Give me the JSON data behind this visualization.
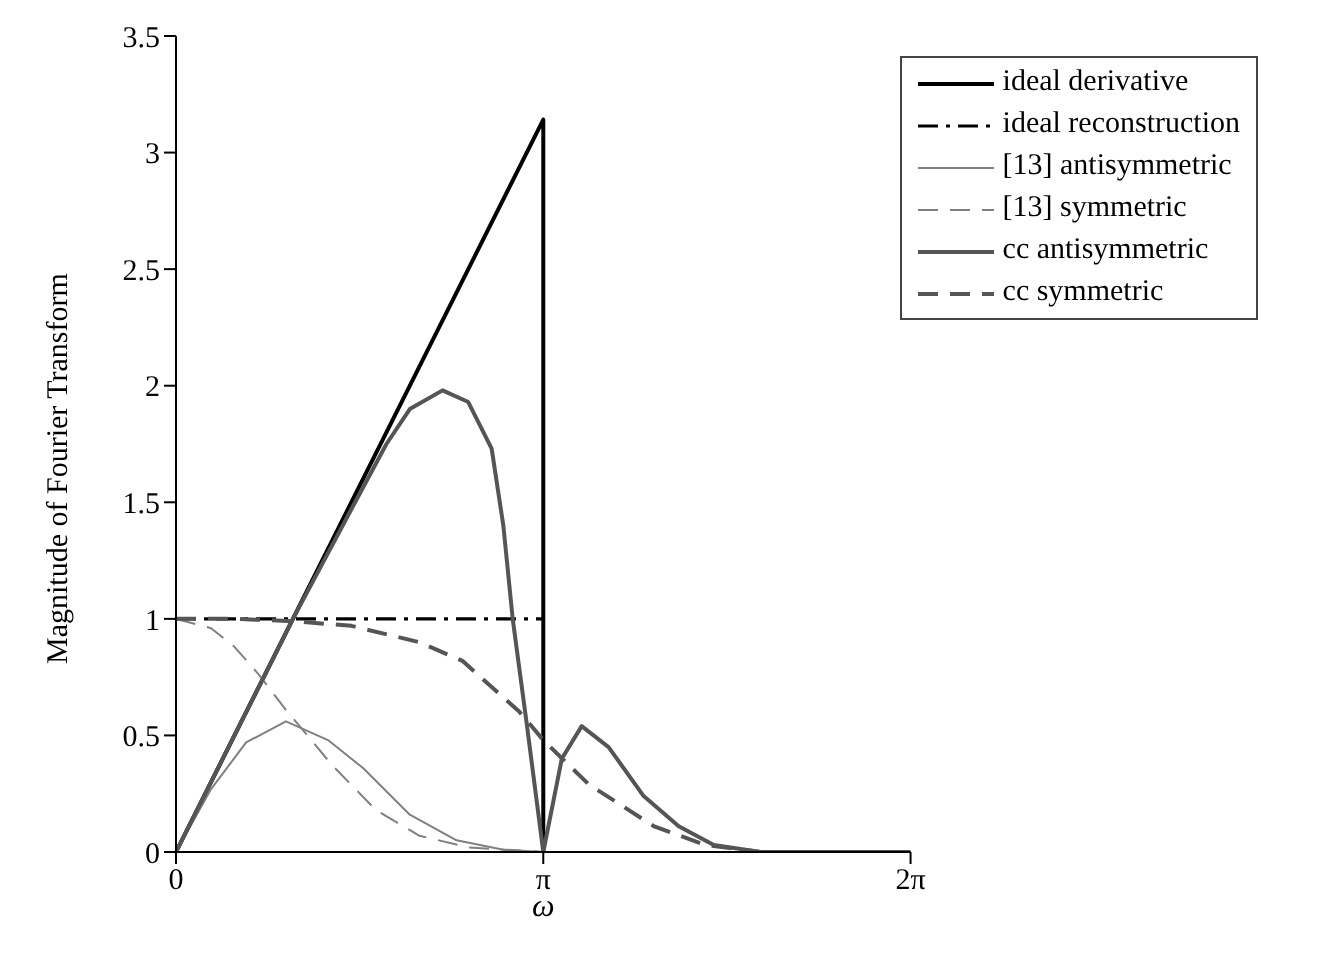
{
  "chart_data": {
    "type": "line",
    "xlabel": "ω",
    "ylabel": "Magnitude of Fourier Transform",
    "xlim": [
      0,
      6.2832
    ],
    "xticks": [
      {
        "value": 0,
        "label": "0"
      },
      {
        "value": 3.1416,
        "label": "π"
      },
      {
        "value": 6.2832,
        "label": "2π"
      }
    ],
    "ylim": [
      0,
      3.5
    ],
    "yticks": [
      0,
      0.5,
      1,
      1.5,
      2,
      2.5,
      3,
      3.5
    ],
    "grid": false,
    "legend": "top right",
    "marker": "none",
    "series": [
      {
        "name": "ideal derivative",
        "color": "#000000",
        "line_style": "solid",
        "x": [
          0,
          3.1416,
          3.1416
        ],
        "values": [
          0,
          3.1416,
          0
        ]
      },
      {
        "name": "ideal reconstruction",
        "color": "#000000",
        "line_style": "dashdot",
        "x": [
          0,
          3.1416
        ],
        "values": [
          1,
          1
        ]
      },
      {
        "name": "[13] antisymmetric",
        "color": "#808080",
        "line_style": "solid",
        "x": [
          0,
          0.3,
          0.6,
          0.94,
          1.3,
          1.6,
          2.0,
          2.4,
          2.8,
          3.1416
        ],
        "values": [
          0,
          0.27,
          0.47,
          0.56,
          0.48,
          0.36,
          0.16,
          0.05,
          0.01,
          0
        ]
      },
      {
        "name": "[13] symmetric",
        "color": "#808080",
        "line_style": "dashed",
        "x": [
          0,
          0.3,
          0.5,
          0.71,
          0.94,
          1.34,
          1.71,
          2.08,
          2.5,
          3.1416
        ],
        "values": [
          1,
          0.96,
          0.88,
          0.76,
          0.61,
          0.37,
          0.18,
          0.07,
          0.02,
          0
        ]
      },
      {
        "name": "cc antisymmetric",
        "color": "#555555",
        "line_style": "solid",
        "x": [
          0,
          0.5,
          1.0,
          1.5,
          1.8,
          2.0,
          2.28,
          2.5,
          2.7,
          2.8,
          2.88,
          3.0,
          3.1416,
          3.3,
          3.47,
          3.7,
          4.0,
          4.3,
          4.6,
          5.0,
          6.2832
        ],
        "values": [
          0,
          0.5,
          1.0,
          1.47,
          1.75,
          1.9,
          1.98,
          1.93,
          1.73,
          1.4,
          1.0,
          0.55,
          0,
          0.4,
          0.54,
          0.45,
          0.24,
          0.11,
          0.03,
          0,
          0
        ]
      },
      {
        "name": "cc symmetric",
        "color": "#555555",
        "line_style": "dashed",
        "x": [
          0,
          0.5,
          1.0,
          1.5,
          2.08,
          2.45,
          2.94,
          3.1416,
          3.53,
          4.09,
          4.53,
          5.0,
          6.2832
        ],
        "values": [
          1,
          1,
          0.99,
          0.97,
          0.9,
          0.82,
          0.6,
          0.48,
          0.29,
          0.11,
          0.03,
          0,
          0
        ]
      }
    ]
  }
}
